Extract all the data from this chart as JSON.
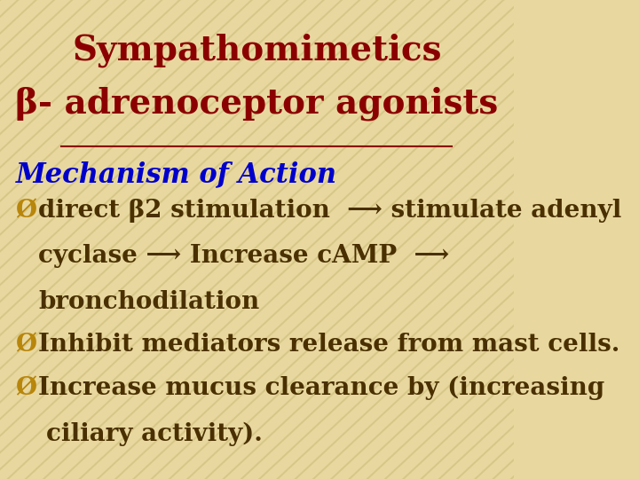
{
  "background_color": "#e8d8a0",
  "title_line1": "Sympathomimetics",
  "title_line2": "β- adrenoceptor agonists",
  "title_color": "#8b0000",
  "title_fontsize": 28,
  "subtitle": "Mechanism of Action",
  "subtitle_color": "#0000cc",
  "subtitle_fontsize": 22,
  "body_color": "#4a3000",
  "body_fontsize": 20,
  "bullet_color": "#b8860b",
  "stripe_color": "#c8b870",
  "stripe_alpha": 0.5,
  "underline_color": "#8b0000"
}
